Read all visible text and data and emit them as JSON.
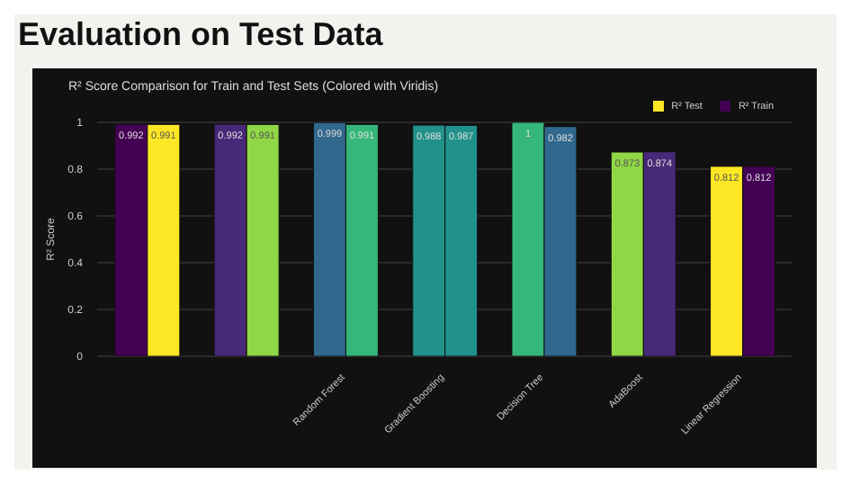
{
  "chart_data": {
    "type": "bar",
    "title": "Evaluation on Test Data",
    "subtitle": "R² Score Comparison for Train and Test Sets (Colored with Viridis)",
    "ylabel": "R² Score",
    "categories": [
      null,
      null,
      "Random Forest",
      "Gradient Boosting",
      "Decision Tree",
      "AdaBoost",
      "Linear Regression"
    ],
    "series": [
      {
        "name": "R² Train",
        "color": "#440154",
        "colors": [
          "#440154",
          "#482878",
          "#31688e",
          "#21918c",
          "#35b779",
          "#8fd744",
          "#fde725"
        ],
        "values": [
          0.992,
          0.992,
          0.999,
          0.988,
          1,
          0.873,
          0.812
        ]
      },
      {
        "name": "R² Test",
        "color": "#fde725",
        "colors": [
          "#fde725",
          "#8fd744",
          "#35b779",
          "#21918c",
          "#31688e",
          "#482878",
          "#440154"
        ],
        "values": [
          0.991,
          0.991,
          0.991,
          0.987,
          0.982,
          0.874,
          0.812
        ]
      }
    ],
    "ylim": [
      0,
      1
    ],
    "yticks": [
      0,
      0.2,
      0.4,
      0.6,
      0.8,
      1
    ],
    "grid": "y",
    "legend": "top right",
    "data_labels": true
  }
}
